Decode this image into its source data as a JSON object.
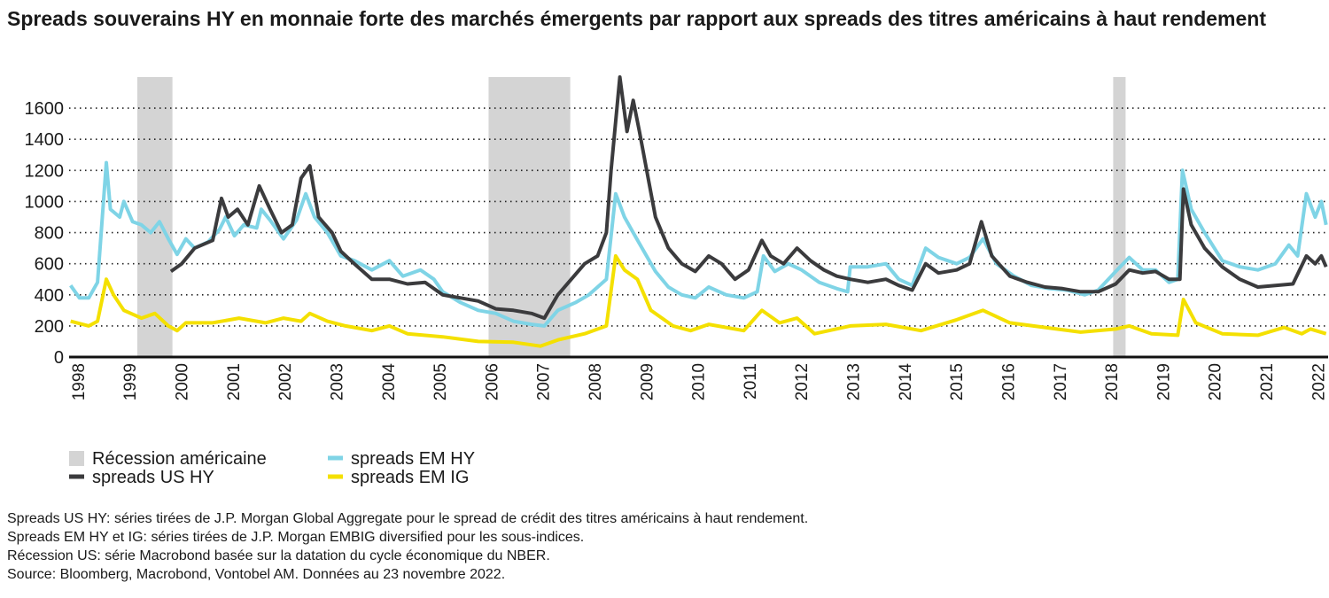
{
  "chart_data": {
    "type": "line",
    "title": "Spreads souverains HY en monnaie forte des marchés émergents par rapport aux spreads des titres américains à haut rendement",
    "xlim": [
      1997.83,
      2022.2
    ],
    "xticks": [
      1998,
      1999,
      2000,
      2001,
      2002,
      2003,
      2004,
      2005,
      2006,
      2007,
      2008,
      2009,
      2010,
      2011,
      2012,
      2013,
      2014,
      2015,
      2016,
      2017,
      2018,
      2019,
      2020,
      2021,
      2022
    ],
    "ylim": [
      0,
      1800
    ],
    "yticks": [
      0,
      200,
      400,
      600,
      800,
      1000,
      1200,
      1400,
      1600
    ],
    "grid": true,
    "recession": {
      "name": "Récession américaine",
      "color": "#d4d4d4",
      "spans": [
        [
          1999.15,
          1999.83
        ],
        [
          2005.95,
          2007.53
        ],
        [
          2018.04,
          2018.28
        ]
      ]
    },
    "series": [
      {
        "name": "spreads US HY",
        "color": "#3b3b3d",
        "x": [
          1999.8,
          2000.01,
          2000.26,
          2000.61,
          2000.78,
          2000.91,
          2001.09,
          2001.29,
          2001.51,
          2001.72,
          2001.94,
          2002.15,
          2002.32,
          2002.49,
          2002.66,
          2002.92,
          2003.09,
          2003.35,
          2003.69,
          2004.03,
          2004.38,
          2004.72,
          2005.06,
          2005.41,
          2005.75,
          2006.09,
          2006.43,
          2006.78,
          2007.03,
          2007.29,
          2007.55,
          2007.81,
          2008.06,
          2008.23,
          2008.32,
          2008.49,
          2008.63,
          2008.75,
          2008.87,
          2009.01,
          2009.18,
          2009.43,
          2009.69,
          2009.95,
          2010.21,
          2010.46,
          2010.72,
          2010.98,
          2011.24,
          2011.41,
          2011.66,
          2011.92,
          2012.18,
          2012.44,
          2012.69,
          2012.95,
          2013.29,
          2013.64,
          2013.89,
          2014.15,
          2014.41,
          2014.66,
          2015.01,
          2015.26,
          2015.49,
          2015.69,
          2016.04,
          2016.38,
          2016.72,
          2017.06,
          2017.41,
          2017.75,
          2018.09,
          2018.35,
          2018.61,
          2018.86,
          2019.12,
          2019.33,
          2019.4,
          2019.55,
          2019.81,
          2020.15,
          2020.49,
          2020.84,
          2021.18,
          2021.52,
          2021.78,
          2021.95,
          2022.07,
          2022.16
        ],
        "values": [
          550,
          600,
          700,
          750,
          1020,
          900,
          950,
          850,
          1100,
          950,
          800,
          850,
          1150,
          1230,
          900,
          800,
          680,
          600,
          500,
          500,
          470,
          480,
          400,
          380,
          360,
          310,
          300,
          280,
          250,
          400,
          500,
          600,
          650,
          800,
          1200,
          1800,
          1450,
          1650,
          1450,
          1200,
          900,
          700,
          600,
          550,
          650,
          600,
          500,
          560,
          750,
          650,
          600,
          700,
          620,
          560,
          520,
          500,
          480,
          500,
          460,
          430,
          600,
          540,
          560,
          600,
          870,
          650,
          520,
          480,
          450,
          440,
          420,
          420,
          470,
          560,
          540,
          550,
          500,
          500,
          1080,
          850,
          700,
          580,
          500,
          450,
          460,
          470,
          650,
          600,
          650,
          580
        ]
      },
      {
        "name": "spreads EM HY",
        "color": "#7fd4e6",
        "x": [
          1997.86,
          1998.03,
          1998.21,
          1998.38,
          1998.55,
          1998.63,
          1998.81,
          1998.89,
          1999.06,
          1999.23,
          1999.41,
          1999.58,
          1999.75,
          1999.92,
          2000.09,
          2000.26,
          2000.52,
          2000.74,
          2000.86,
          2001.03,
          2001.21,
          2001.46,
          2001.55,
          2001.72,
          2001.98,
          2002.23,
          2002.41,
          2002.58,
          2002.83,
          2003.09,
          2003.35,
          2003.69,
          2004.03,
          2004.29,
          2004.63,
          2004.89,
          2005.06,
          2005.41,
          2005.75,
          2006.09,
          2006.43,
          2006.78,
          2007.03,
          2007.29,
          2007.63,
          2007.89,
          2008.23,
          2008.41,
          2008.58,
          2008.75,
          2008.92,
          2009.18,
          2009.43,
          2009.69,
          2009.95,
          2010.21,
          2010.55,
          2010.89,
          2011.15,
          2011.27,
          2011.49,
          2011.75,
          2012.01,
          2012.35,
          2012.69,
          2012.9,
          2012.95,
          2013.29,
          2013.64,
          2013.89,
          2014.15,
          2014.41,
          2014.66,
          2015.01,
          2015.26,
          2015.52,
          2015.78,
          2016.12,
          2016.46,
          2016.81,
          2017.15,
          2017.49,
          2017.75,
          2018.09,
          2018.35,
          2018.61,
          2018.86,
          2019.12,
          2019.29,
          2019.38,
          2019.55,
          2019.81,
          2020.15,
          2020.49,
          2020.84,
          2021.18,
          2021.44,
          2021.61,
          2021.78,
          2021.95,
          2022.07,
          2022.16
        ],
        "values": [
          460,
          380,
          380,
          480,
          1250,
          950,
          900,
          1000,
          870,
          850,
          800,
          870,
          760,
          660,
          760,
          700,
          740,
          820,
          900,
          780,
          850,
          830,
          950,
          880,
          760,
          880,
          1050,
          900,
          800,
          650,
          620,
          560,
          620,
          520,
          560,
          500,
          420,
          350,
          300,
          280,
          230,
          210,
          200,
          300,
          350,
          400,
          500,
          1050,
          900,
          800,
          700,
          550,
          450,
          400,
          380,
          450,
          400,
          380,
          420,
          650,
          550,
          600,
          560,
          480,
          440,
          420,
          580,
          580,
          600,
          500,
          460,
          700,
          640,
          600,
          640,
          760,
          600,
          520,
          460,
          440,
          430,
          400,
          430,
          550,
          640,
          560,
          560,
          480,
          500,
          1200,
          950,
          800,
          620,
          580,
          560,
          600,
          720,
          650,
          1050,
          900,
          1000,
          850
        ]
      },
      {
        "name": "spreads EM IG",
        "color": "#f4e000",
        "x": [
          1997.86,
          1998.21,
          1998.38,
          1998.55,
          1998.69,
          1998.89,
          1999.23,
          1999.49,
          1999.75,
          1999.92,
          2000.09,
          2000.61,
          2001.12,
          2001.63,
          2001.98,
          2002.32,
          2002.49,
          2002.83,
          2003.18,
          2003.69,
          2004.03,
          2004.38,
          2005.06,
          2005.75,
          2006.43,
          2006.95,
          2007.29,
          2007.81,
          2008.23,
          2008.41,
          2008.58,
          2008.83,
          2009.09,
          2009.52,
          2009.86,
          2010.21,
          2010.89,
          2011.24,
          2011.58,
          2011.92,
          2012.26,
          2012.95,
          2013.64,
          2014.32,
          2015.01,
          2015.52,
          2016.04,
          2016.72,
          2017.41,
          2018.09,
          2018.35,
          2018.78,
          2019.29,
          2019.4,
          2019.64,
          2020.15,
          2020.84,
          2021.35,
          2021.69,
          2021.86,
          2022.16
        ],
        "values": [
          230,
          200,
          230,
          500,
          400,
          300,
          250,
          280,
          200,
          170,
          220,
          220,
          250,
          220,
          250,
          230,
          280,
          230,
          200,
          170,
          200,
          150,
          130,
          100,
          95,
          70,
          110,
          150,
          200,
          650,
          560,
          500,
          300,
          200,
          170,
          210,
          170,
          300,
          220,
          250,
          150,
          200,
          210,
          170,
          240,
          300,
          220,
          190,
          160,
          180,
          200,
          150,
          140,
          370,
          220,
          150,
          140,
          190,
          150,
          180,
          150
        ]
      }
    ],
    "notes": [
      "Spreads US HY: séries tirées de J.P. Morgan Global Aggregate pour le spread de crédit des titres américains à haut rendement.",
      "Spreads EM HY et IG: séries tirées de J.P. Morgan EMBIG diversified pour les sous-indices.",
      "Récession US: série Macrobond basée sur la datation du cycle économique du NBER.",
      "Source: Bloomberg, Macrobond, Vontobel AM. Données au 23 novembre 2022."
    ]
  }
}
